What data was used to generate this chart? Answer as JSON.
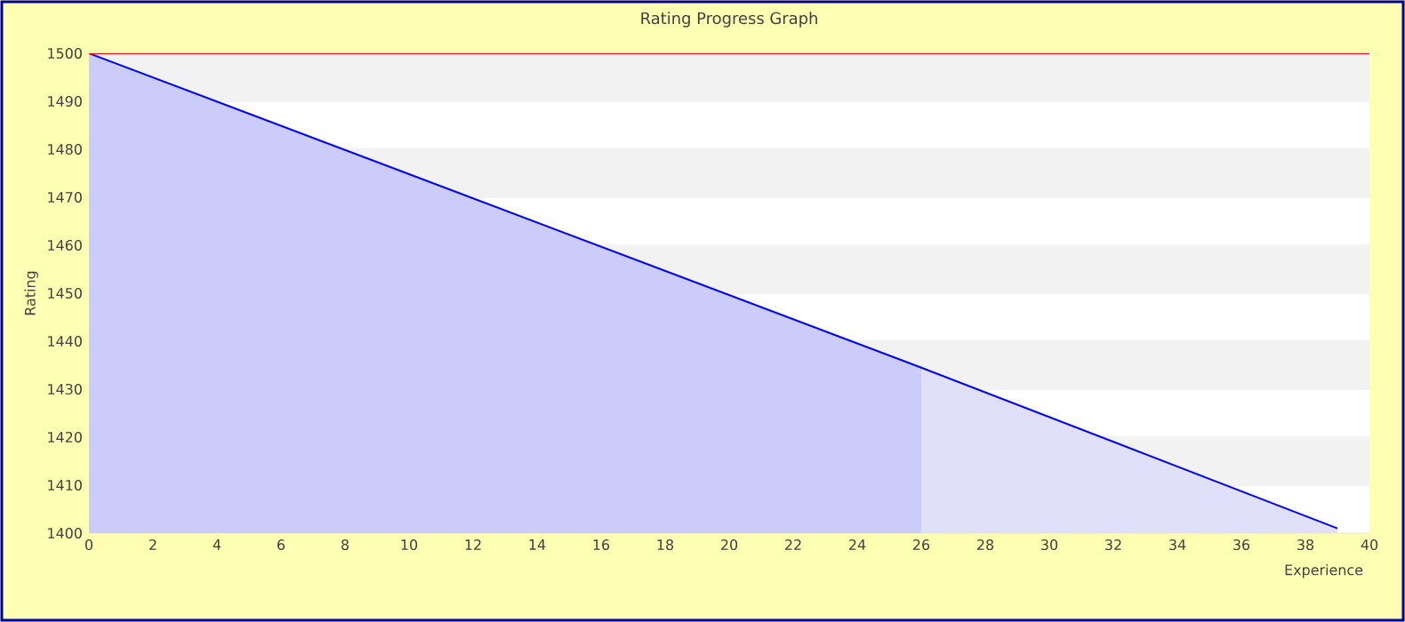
{
  "chart_data": {
    "type": "area",
    "title": "Rating Progress Graph",
    "xlabel": "Experience",
    "ylabel": "Rating",
    "xlim": [
      0,
      40
    ],
    "ylim": [
      1400,
      1500
    ],
    "xticks": [
      0,
      2,
      4,
      6,
      8,
      10,
      12,
      14,
      16,
      18,
      20,
      22,
      24,
      26,
      28,
      30,
      32,
      34,
      36,
      38,
      40
    ],
    "yticks": [
      1400,
      1410,
      1420,
      1430,
      1440,
      1450,
      1460,
      1470,
      1480,
      1490,
      1500
    ],
    "grid": "y",
    "bands": [
      {
        "axis": "y",
        "from": 1410,
        "to": 1420,
        "color": "#f2f2f2"
      },
      {
        "axis": "y",
        "from": 1430,
        "to": 1440,
        "color": "#f2f2f2"
      },
      {
        "axis": "y",
        "from": 1450,
        "to": 1460,
        "color": "#f2f2f2"
      },
      {
        "axis": "y",
        "from": 1470,
        "to": 1480,
        "color": "#f2f2f2"
      },
      {
        "axis": "y",
        "from": 1490,
        "to": 1500,
        "color": "#f2f2f2"
      }
    ],
    "ref_lines": [
      {
        "axis": "y",
        "value": 1500,
        "color": "#ff0000"
      }
    ],
    "series": [
      {
        "color": "#ccccfa",
        "x": [
          0,
          26
        ],
        "values": [
          1500,
          1434.5
        ]
      },
      {
        "color": "#e0e0fa",
        "x": [
          26,
          39
        ],
        "values": [
          1434.5,
          1401
        ]
      },
      {
        "type": "line",
        "color": "#0000ff",
        "x": [
          0,
          26,
          39
        ],
        "values": [
          1500,
          1434.5,
          1401
        ]
      }
    ]
  }
}
